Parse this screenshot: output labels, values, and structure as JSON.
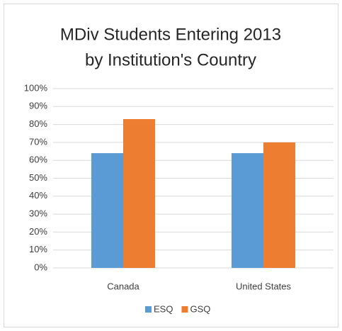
{
  "chart_data": {
    "type": "bar",
    "title": [
      "MDiv Students Entering 2013",
      "by Institution's Country"
    ],
    "categories": [
      "Canada",
      "United States"
    ],
    "series": [
      {
        "name": "ESQ",
        "color": "#5b9bd5",
        "values": [
          64,
          64
        ]
      },
      {
        "name": "GSQ",
        "color": "#ed7d31",
        "values": [
          83,
          70
        ]
      }
    ],
    "ylim": [
      0,
      100
    ],
    "yticks": [
      {
        "value": 0,
        "label": "0%"
      },
      {
        "value": 10,
        "label": "10%"
      },
      {
        "value": 20,
        "label": "20%"
      },
      {
        "value": 30,
        "label": "30%"
      },
      {
        "value": 40,
        "label": "40%"
      },
      {
        "value": 50,
        "label": "50%"
      },
      {
        "value": 60,
        "label": "60%"
      },
      {
        "value": 70,
        "label": "70%"
      },
      {
        "value": 80,
        "label": "80%"
      },
      {
        "value": 90,
        "label": "90%"
      },
      {
        "value": 100,
        "label": "100%"
      }
    ],
    "grid": true,
    "legend": "bottom"
  }
}
